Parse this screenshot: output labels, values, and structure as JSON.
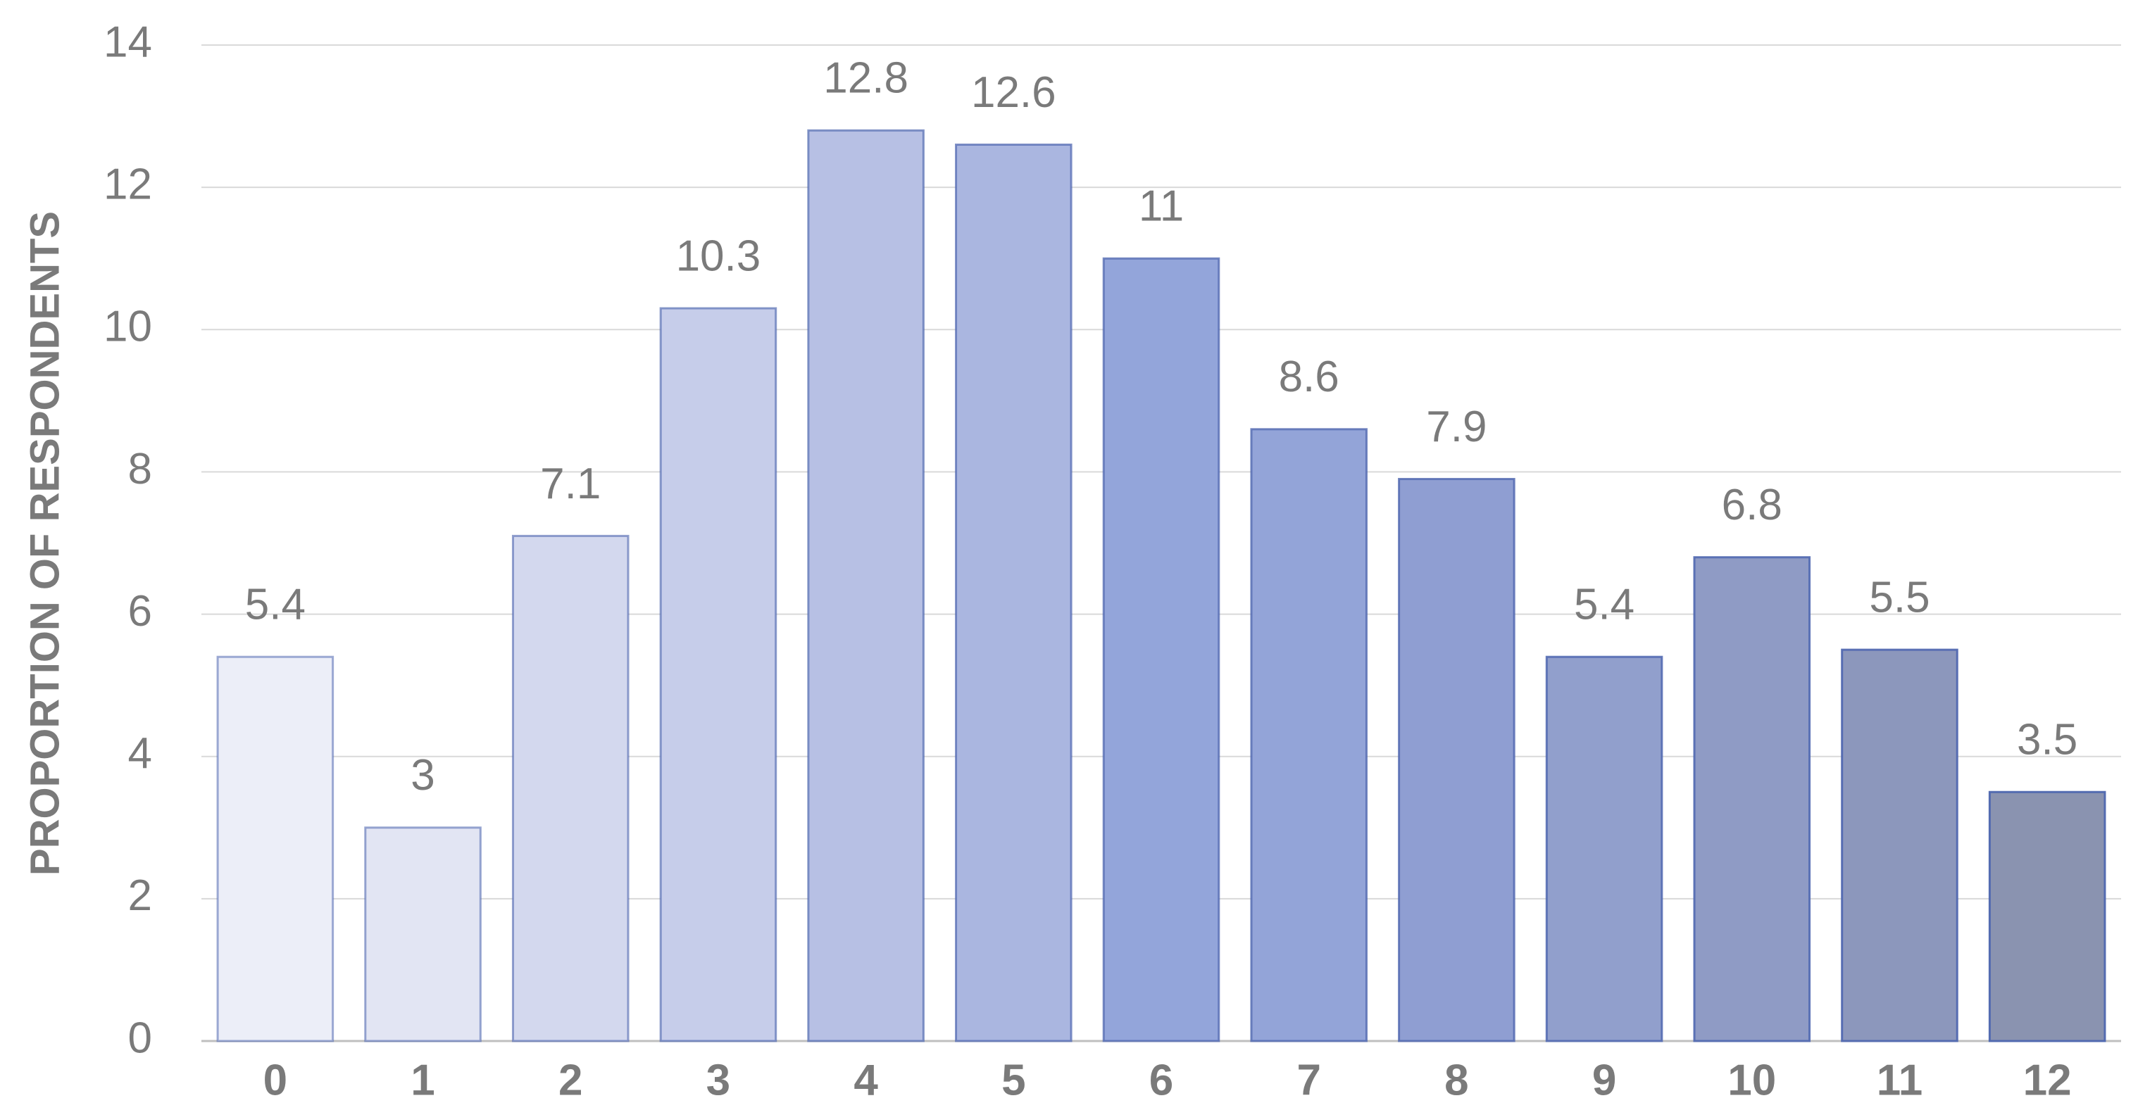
{
  "chart_data": {
    "type": "bar",
    "y_axis_label": "PROPORTION OF RESPONDENTS",
    "categories": [
      "0",
      "1",
      "2",
      "3",
      "4",
      "5",
      "6",
      "7",
      "8",
      "9",
      "10",
      "11",
      "12"
    ],
    "values": [
      5.4,
      3,
      7.1,
      10.3,
      12.8,
      12.6,
      11,
      8.6,
      7.9,
      5.4,
      6.8,
      5.5,
      3.5
    ],
    "colors": [
      "#eceef8",
      "#e2e5f3",
      "#d3d8ee",
      "#c6cdea",
      "#b7c0e4",
      "#aab6e0",
      "#93a5da",
      "#93a4d8",
      "#8f9ed2",
      "#919fcc",
      "#8f9bc5",
      "#8c97bc",
      "#8a93b0"
    ],
    "ylim": [
      0,
      14
    ],
    "yticks": [
      0,
      2,
      4,
      6,
      8,
      10,
      12,
      14
    ],
    "grid": true
  }
}
